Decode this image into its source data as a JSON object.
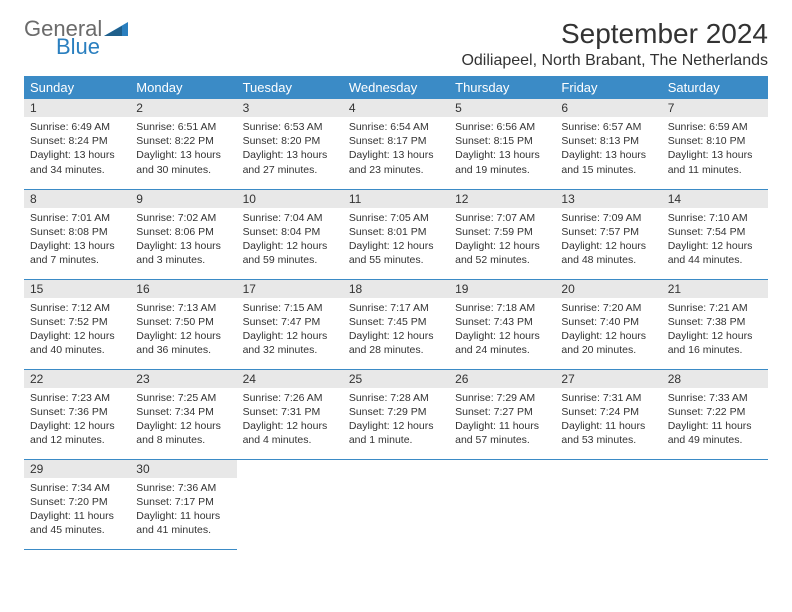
{
  "logo": {
    "general": "General",
    "blue": "Blue"
  },
  "title": "September 2024",
  "location": "Odiliapeel, North Brabant, The Netherlands",
  "colors": {
    "header_bg": "#3b8bc6",
    "header_text": "#ffffff",
    "daynum_bg": "#e8e8e8",
    "border": "#3b8bc6",
    "text": "#333333",
    "logo_gray": "#6b6b6b",
    "logo_blue": "#2a7fbf"
  },
  "weekdays": [
    "Sunday",
    "Monday",
    "Tuesday",
    "Wednesday",
    "Thursday",
    "Friday",
    "Saturday"
  ],
  "weeks": [
    [
      {
        "n": "1",
        "sr": "6:49 AM",
        "ss": "8:24 PM",
        "dl": "13 hours and 34 minutes."
      },
      {
        "n": "2",
        "sr": "6:51 AM",
        "ss": "8:22 PM",
        "dl": "13 hours and 30 minutes."
      },
      {
        "n": "3",
        "sr": "6:53 AM",
        "ss": "8:20 PM",
        "dl": "13 hours and 27 minutes."
      },
      {
        "n": "4",
        "sr": "6:54 AM",
        "ss": "8:17 PM",
        "dl": "13 hours and 23 minutes."
      },
      {
        "n": "5",
        "sr": "6:56 AM",
        "ss": "8:15 PM",
        "dl": "13 hours and 19 minutes."
      },
      {
        "n": "6",
        "sr": "6:57 AM",
        "ss": "8:13 PM",
        "dl": "13 hours and 15 minutes."
      },
      {
        "n": "7",
        "sr": "6:59 AM",
        "ss": "8:10 PM",
        "dl": "13 hours and 11 minutes."
      }
    ],
    [
      {
        "n": "8",
        "sr": "7:01 AM",
        "ss": "8:08 PM",
        "dl": "13 hours and 7 minutes."
      },
      {
        "n": "9",
        "sr": "7:02 AM",
        "ss": "8:06 PM",
        "dl": "13 hours and 3 minutes."
      },
      {
        "n": "10",
        "sr": "7:04 AM",
        "ss": "8:04 PM",
        "dl": "12 hours and 59 minutes."
      },
      {
        "n": "11",
        "sr": "7:05 AM",
        "ss": "8:01 PM",
        "dl": "12 hours and 55 minutes."
      },
      {
        "n": "12",
        "sr": "7:07 AM",
        "ss": "7:59 PM",
        "dl": "12 hours and 52 minutes."
      },
      {
        "n": "13",
        "sr": "7:09 AM",
        "ss": "7:57 PM",
        "dl": "12 hours and 48 minutes."
      },
      {
        "n": "14",
        "sr": "7:10 AM",
        "ss": "7:54 PM",
        "dl": "12 hours and 44 minutes."
      }
    ],
    [
      {
        "n": "15",
        "sr": "7:12 AM",
        "ss": "7:52 PM",
        "dl": "12 hours and 40 minutes."
      },
      {
        "n": "16",
        "sr": "7:13 AM",
        "ss": "7:50 PM",
        "dl": "12 hours and 36 minutes."
      },
      {
        "n": "17",
        "sr": "7:15 AM",
        "ss": "7:47 PM",
        "dl": "12 hours and 32 minutes."
      },
      {
        "n": "18",
        "sr": "7:17 AM",
        "ss": "7:45 PM",
        "dl": "12 hours and 28 minutes."
      },
      {
        "n": "19",
        "sr": "7:18 AM",
        "ss": "7:43 PM",
        "dl": "12 hours and 24 minutes."
      },
      {
        "n": "20",
        "sr": "7:20 AM",
        "ss": "7:40 PM",
        "dl": "12 hours and 20 minutes."
      },
      {
        "n": "21",
        "sr": "7:21 AM",
        "ss": "7:38 PM",
        "dl": "12 hours and 16 minutes."
      }
    ],
    [
      {
        "n": "22",
        "sr": "7:23 AM",
        "ss": "7:36 PM",
        "dl": "12 hours and 12 minutes."
      },
      {
        "n": "23",
        "sr": "7:25 AM",
        "ss": "7:34 PM",
        "dl": "12 hours and 8 minutes."
      },
      {
        "n": "24",
        "sr": "7:26 AM",
        "ss": "7:31 PM",
        "dl": "12 hours and 4 minutes."
      },
      {
        "n": "25",
        "sr": "7:28 AM",
        "ss": "7:29 PM",
        "dl": "12 hours and 1 minute."
      },
      {
        "n": "26",
        "sr": "7:29 AM",
        "ss": "7:27 PM",
        "dl": "11 hours and 57 minutes."
      },
      {
        "n": "27",
        "sr": "7:31 AM",
        "ss": "7:24 PM",
        "dl": "11 hours and 53 minutes."
      },
      {
        "n": "28",
        "sr": "7:33 AM",
        "ss": "7:22 PM",
        "dl": "11 hours and 49 minutes."
      }
    ],
    [
      {
        "n": "29",
        "sr": "7:34 AM",
        "ss": "7:20 PM",
        "dl": "11 hours and 45 minutes."
      },
      {
        "n": "30",
        "sr": "7:36 AM",
        "ss": "7:17 PM",
        "dl": "11 hours and 41 minutes."
      },
      null,
      null,
      null,
      null,
      null
    ]
  ]
}
